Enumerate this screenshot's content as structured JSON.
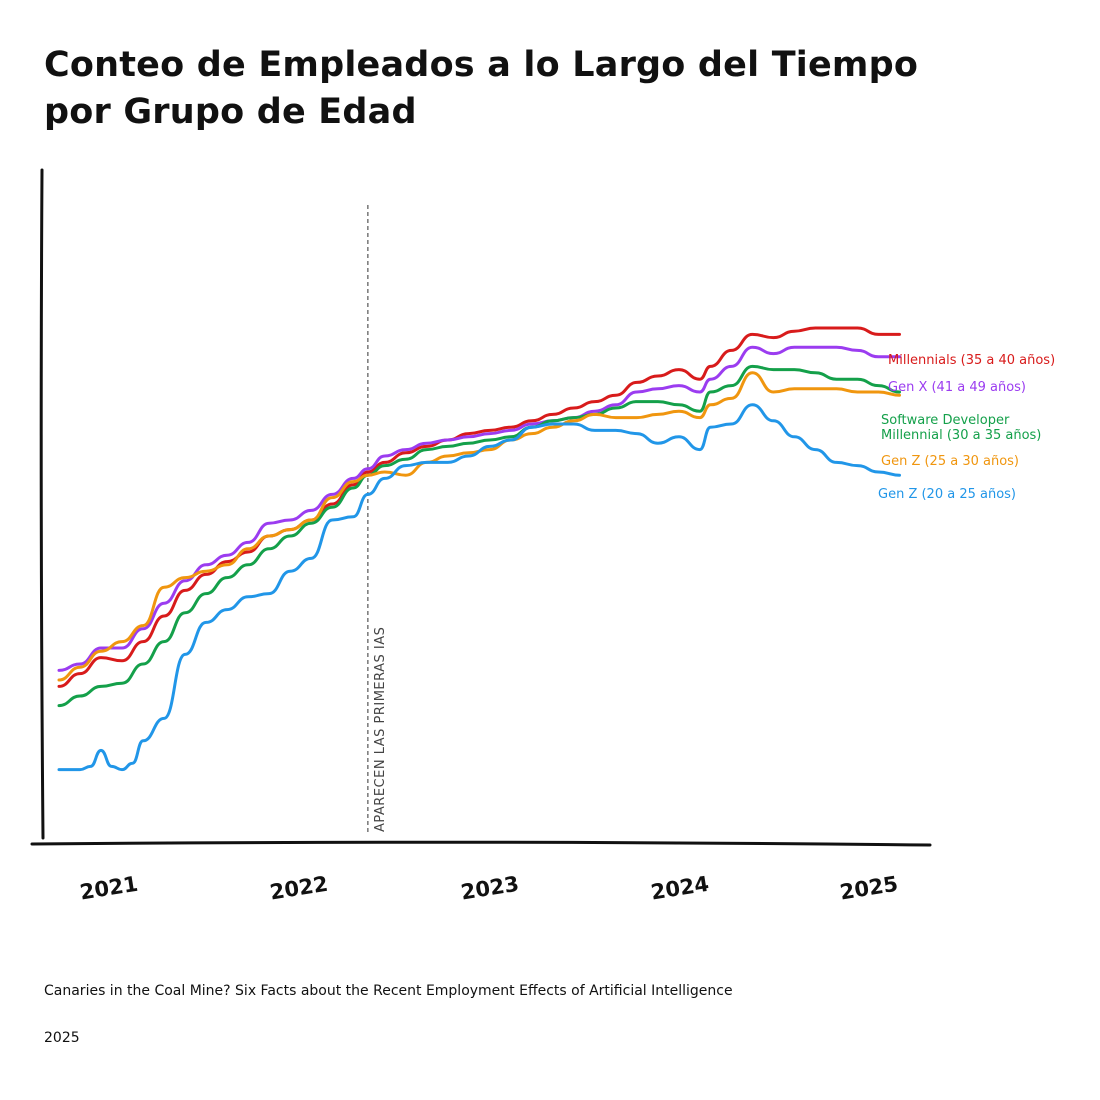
{
  "chart_data": {
    "type": "line",
    "title": "Conteo de Empleados a lo Largo del Tiempo por Grupo de Edad",
    "xlabel": "",
    "ylabel": "",
    "xlim": [
      2020.85,
      2025.0
    ],
    "ylim": [
      0,
      100
    ],
    "x_ticks": [
      "2021",
      "2022",
      "2023",
      "2024",
      "2025"
    ],
    "annotation": {
      "x": 2022.42,
      "label": "APARECEN LAS PRIMERAS IAS"
    },
    "legend": "end-of-line labels",
    "series": [
      {
        "name": "Millennials (35 a 40 años)",
        "color": "#d81b1b",
        "x": [
          2020.95,
          2021.05,
          2021.15,
          2021.25,
          2021.35,
          2021.45,
          2021.55,
          2021.65,
          2021.75,
          2021.85,
          2021.95,
          2022.05,
          2022.15,
          2022.25,
          2022.35,
          2022.42,
          2022.5,
          2022.6,
          2022.7,
          2022.8,
          2022.9,
          2023.0,
          2023.1,
          2023.2,
          2023.3,
          2023.4,
          2023.5,
          2023.6,
          2023.7,
          2023.8,
          2023.9,
          2024.0,
          2024.05,
          2024.15,
          2024.25,
          2024.35,
          2024.45,
          2024.55,
          2024.65,
          2024.75,
          2024.85,
          2024.95
        ],
        "values": [
          24.0,
          26.0,
          28.5,
          28.0,
          31.0,
          35.0,
          39.0,
          41.5,
          43.5,
          45.0,
          47.5,
          48.5,
          50.0,
          52.5,
          55.5,
          57.5,
          59.0,
          60.5,
          61.5,
          62.5,
          63.5,
          64.0,
          64.5,
          65.5,
          66.5,
          67.5,
          68.5,
          69.5,
          71.5,
          72.5,
          73.5,
          72.0,
          74.0,
          76.5,
          79.0,
          78.5,
          79.5,
          80.0,
          80.0,
          80.0,
          79.0,
          79.0
        ]
      },
      {
        "name": "Gen X (41 a 49 años)",
        "color": "#9b3cf0",
        "x": [
          2020.95,
          2021.05,
          2021.15,
          2021.25,
          2021.35,
          2021.45,
          2021.55,
          2021.65,
          2021.75,
          2021.85,
          2021.95,
          2022.05,
          2022.15,
          2022.25,
          2022.35,
          2022.42,
          2022.5,
          2022.6,
          2022.7,
          2022.8,
          2022.9,
          2023.0,
          2023.1,
          2023.2,
          2023.3,
          2023.4,
          2023.5,
          2023.6,
          2023.7,
          2023.8,
          2023.9,
          2024.0,
          2024.05,
          2024.15,
          2024.25,
          2024.35,
          2024.45,
          2024.55,
          2024.65,
          2024.75,
          2024.85,
          2024.95
        ],
        "values": [
          26.5,
          27.5,
          30.0,
          30.0,
          33.0,
          37.0,
          40.5,
          43.0,
          44.5,
          46.5,
          49.5,
          50.0,
          51.5,
          54.0,
          56.5,
          58.0,
          60.0,
          61.0,
          62.0,
          62.5,
          63.0,
          63.5,
          64.0,
          65.0,
          65.5,
          66.0,
          67.0,
          68.0,
          70.0,
          70.5,
          71.0,
          70.0,
          72.0,
          74.0,
          77.0,
          76.0,
          77.0,
          77.0,
          77.0,
          76.5,
          75.5,
          75.5
        ]
      },
      {
        "name": "Software Developer Millennial (30 a 35  años)",
        "color": "#14a04a",
        "x": [
          2020.95,
          2021.05,
          2021.15,
          2021.25,
          2021.35,
          2021.45,
          2021.55,
          2021.65,
          2021.75,
          2021.85,
          2021.95,
          2022.05,
          2022.15,
          2022.25,
          2022.35,
          2022.42,
          2022.5,
          2022.6,
          2022.7,
          2022.8,
          2022.9,
          2023.0,
          2023.1,
          2023.2,
          2023.3,
          2023.4,
          2023.5,
          2023.6,
          2023.7,
          2023.8,
          2023.9,
          2024.0,
          2024.05,
          2024.15,
          2024.25,
          2024.35,
          2024.45,
          2024.55,
          2024.65,
          2024.75,
          2024.85,
          2024.95
        ],
        "values": [
          21.0,
          22.5,
          24.0,
          24.5,
          27.5,
          31.0,
          35.5,
          38.5,
          41.0,
          43.0,
          45.5,
          47.5,
          49.5,
          52.0,
          55.0,
          57.0,
          58.5,
          59.5,
          61.0,
          61.5,
          62.0,
          62.5,
          63.0,
          64.5,
          65.5,
          66.0,
          66.5,
          67.5,
          68.5,
          68.5,
          68.0,
          67.0,
          70.0,
          71.0,
          74.0,
          73.5,
          73.5,
          73.0,
          72.0,
          72.0,
          71.0,
          70.0
        ]
      },
      {
        "name": "Gen Z (25 a 30 años)",
        "color": "#f0960f",
        "x": [
          2020.95,
          2021.05,
          2021.15,
          2021.25,
          2021.35,
          2021.45,
          2021.55,
          2021.65,
          2021.75,
          2021.85,
          2021.95,
          2022.05,
          2022.15,
          2022.25,
          2022.35,
          2022.42,
          2022.5,
          2022.6,
          2022.7,
          2022.8,
          2022.9,
          2023.0,
          2023.1,
          2023.2,
          2023.3,
          2023.4,
          2023.5,
          2023.6,
          2023.7,
          2023.8,
          2023.9,
          2024.0,
          2024.05,
          2024.15,
          2024.25,
          2024.35,
          2024.45,
          2024.55,
          2024.65,
          2024.75,
          2024.85,
          2024.95
        ],
        "values": [
          25.0,
          27.0,
          29.5,
          31.0,
          33.5,
          39.5,
          41.0,
          42.0,
          43.0,
          45.5,
          47.5,
          48.5,
          50.0,
          53.5,
          56.0,
          57.0,
          57.5,
          57.0,
          59.0,
          60.0,
          60.5,
          61.0,
          62.5,
          63.5,
          64.5,
          65.5,
          66.5,
          66.0,
          66.0,
          66.5,
          67.0,
          66.0,
          68.0,
          69.0,
          73.0,
          70.0,
          70.5,
          70.5,
          70.5,
          70.0,
          70.0,
          69.5
        ]
      },
      {
        "name": "Gen Z (20 a 25 años)",
        "color": "#2196e8",
        "x": [
          2020.95,
          2021.05,
          2021.1,
          2021.15,
          2021.2,
          2021.25,
          2021.3,
          2021.35,
          2021.45,
          2021.55,
          2021.65,
          2021.75,
          2021.85,
          2021.95,
          2022.05,
          2022.15,
          2022.25,
          2022.35,
          2022.42,
          2022.5,
          2022.6,
          2022.7,
          2022.8,
          2022.9,
          2023.0,
          2023.1,
          2023.2,
          2023.3,
          2023.4,
          2023.5,
          2023.6,
          2023.7,
          2023.8,
          2023.9,
          2024.0,
          2024.05,
          2024.15,
          2024.25,
          2024.35,
          2024.45,
          2024.55,
          2024.65,
          2024.75,
          2024.85,
          2024.95
        ],
        "values": [
          11.0,
          11.0,
          11.5,
          14.0,
          11.5,
          11.0,
          12.0,
          15.5,
          19.0,
          29.0,
          34.0,
          36.0,
          38.0,
          38.5,
          42.0,
          44.0,
          50.0,
          50.5,
          54.0,
          56.5,
          58.5,
          59.0,
          59.0,
          60.0,
          61.5,
          62.5,
          64.5,
          65.0,
          65.0,
          64.0,
          64.0,
          63.5,
          62.0,
          63.0,
          61.0,
          64.5,
          65.0,
          68.0,
          65.5,
          63.0,
          61.0,
          59.0,
          58.5,
          57.5,
          57.0
        ]
      }
    ]
  },
  "source": {
    "text": "Canaries in the Coal Mine? Six Facts about the Recent Employment Effects of Artificial Intelligence",
    "year": "2025"
  }
}
